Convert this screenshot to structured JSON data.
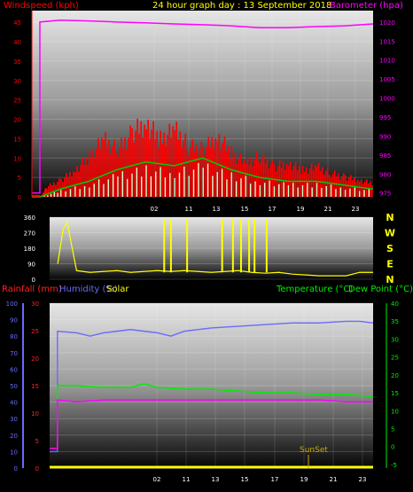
{
  "header": {
    "title": "24 hour graph day : 13 September 2018",
    "left_label": "Windspeed (kph)",
    "right_label": "Barometer (hpa)"
  },
  "panel2": {
    "compass": [
      "N",
      "W",
      "S",
      "E",
      "N"
    ]
  },
  "panel3": {
    "rainfall_label": "Rainfall (mm)",
    "humidity_label": "Humidity (%)",
    "solar_label": "Solar",
    "temperature_label": "Temperature (°C)",
    "dewpoint_label": "Dew Point (°C)",
    "sunset_label": "SunSet"
  },
  "colors": {
    "wind": "#ff0000",
    "wind_avg": "#00cc00",
    "wind_light": "#ccffcc",
    "barometer": "#ff00ff",
    "direction": "#ffff00",
    "rainfall": "#ff2020",
    "humidity": "#6a6aff",
    "temperature": "#00ee00",
    "dewpoint": "#ff00ff",
    "sunset": "#ccaa00"
  },
  "chart_data": [
    {
      "type": "line",
      "name": "wind-barometer",
      "x_ticks": [
        "02",
        "11",
        "13",
        "15",
        "17",
        "19",
        "21",
        "23"
      ],
      "y_left_ticks": [
        "0",
        "5",
        "10",
        "15",
        "20",
        "25",
        "30",
        "35",
        "40",
        "45"
      ],
      "y_right_ticks": [
        "975",
        "980",
        "985",
        "990",
        "995",
        "1000",
        "1005",
        "1010",
        "1015",
        "1020"
      ],
      "ylim_left": [
        0,
        48
      ],
      "ylim_right": [
        974,
        1023
      ],
      "barometer": {
        "x": [
          0.0,
          0.56,
          0.56,
          2,
          4,
          6,
          8,
          10,
          12,
          14,
          16,
          18,
          20,
          22,
          24
        ],
        "y": [
          975,
          975,
          1020,
          1020.5,
          1020.3,
          1020,
          1019.8,
          1019.5,
          1019.3,
          1019,
          1018.5,
          1018.5,
          1018.8,
          1019,
          1019.5
        ]
      },
      "wind_gust": {
        "x": [
          0,
          0.6,
          1,
          2,
          3,
          4,
          5,
          6,
          7,
          8,
          9,
          10,
          11,
          12,
          13,
          14,
          15,
          16,
          17,
          18,
          19,
          20,
          21,
          22,
          23,
          24
        ],
        "y": [
          0,
          0,
          3,
          5,
          8,
          12,
          17,
          14,
          19,
          22,
          17,
          20,
          15,
          14,
          18,
          13,
          10,
          12,
          9,
          10,
          8,
          9,
          7,
          6,
          5,
          4
        ]
      },
      "wind_avg": {
        "x": [
          0,
          0.6,
          2,
          4,
          6,
          8,
          10,
          12,
          14,
          16,
          18,
          20,
          22,
          24
        ],
        "y": [
          0,
          0,
          2,
          4,
          7,
          9,
          8,
          10,
          7,
          5,
          4,
          4,
          3,
          2
        ]
      }
    },
    {
      "type": "scatter",
      "name": "wind-direction",
      "y_ticks": [
        "0",
        "90",
        "180",
        "270",
        "360"
      ],
      "ylim": [
        0,
        360
      ],
      "x": [
        0.6,
        1,
        1.3,
        2,
        3,
        4,
        5,
        6,
        7,
        8,
        9,
        10,
        11,
        12,
        13,
        14,
        15,
        16,
        17,
        18,
        19,
        20,
        21,
        22,
        23,
        24
      ],
      "y": [
        90,
        290,
        330,
        50,
        40,
        45,
        50,
        40,
        45,
        50,
        45,
        50,
        45,
        40,
        45,
        50,
        40,
        35,
        40,
        30,
        25,
        20,
        20,
        20,
        40,
        40
      ]
    },
    {
      "type": "line",
      "name": "rain-humidity-temperature",
      "x_ticks": [
        "02",
        "11",
        "13",
        "15",
        "17",
        "19",
        "21",
        "23"
      ],
      "y_humidity_ticks": [
        "0",
        "10",
        "20",
        "30",
        "40",
        "50",
        "60",
        "70",
        "80",
        "90",
        "100"
      ],
      "y_rain_ticks": [
        "0",
        "5",
        "10",
        "15",
        "20",
        "25",
        "30"
      ],
      "y_temp_ticks": [
        "-5",
        "0",
        "5",
        "10",
        "15",
        "20",
        "25",
        "30",
        "35",
        "40"
      ],
      "ylim_humidity": [
        0,
        100
      ],
      "ylim_temp": [
        -6,
        40
      ],
      "humidity": {
        "x": [
          0,
          0.58,
          0.58,
          2,
          3,
          4,
          5,
          6,
          7,
          8,
          9,
          10,
          11,
          12,
          14,
          16,
          18,
          20,
          22,
          23,
          24
        ],
        "y": [
          10,
          10,
          83,
          82,
          80,
          82,
          83,
          84,
          83,
          82,
          80,
          83,
          84,
          85,
          86,
          87,
          88,
          88,
          89,
          89,
          88
        ]
      },
      "temperature": {
        "x": [
          0,
          0.58,
          0.58,
          2,
          4,
          6,
          7,
          8,
          10,
          12,
          14,
          16,
          18,
          20,
          22,
          24
        ],
        "y": [
          -0.5,
          -0.5,
          17,
          17,
          16.5,
          16.5,
          17.5,
          16.5,
          16,
          16,
          15.5,
          15,
          15,
          14.5,
          14.5,
          14
        ]
      },
      "dewpoint": {
        "x": [
          0,
          0.58,
          0.58,
          2,
          4,
          6,
          8,
          10,
          12,
          14,
          16,
          18,
          20,
          22,
          24
        ],
        "y": [
          -0.5,
          -0.5,
          13,
          12.5,
          13,
          13,
          13,
          13,
          13,
          13,
          13,
          13,
          13,
          12.5,
          12.5
        ]
      },
      "rainfall": {
        "x": [
          0,
          24
        ],
        "y": [
          0,
          0
        ]
      },
      "sunset_x": 19.2
    }
  ]
}
